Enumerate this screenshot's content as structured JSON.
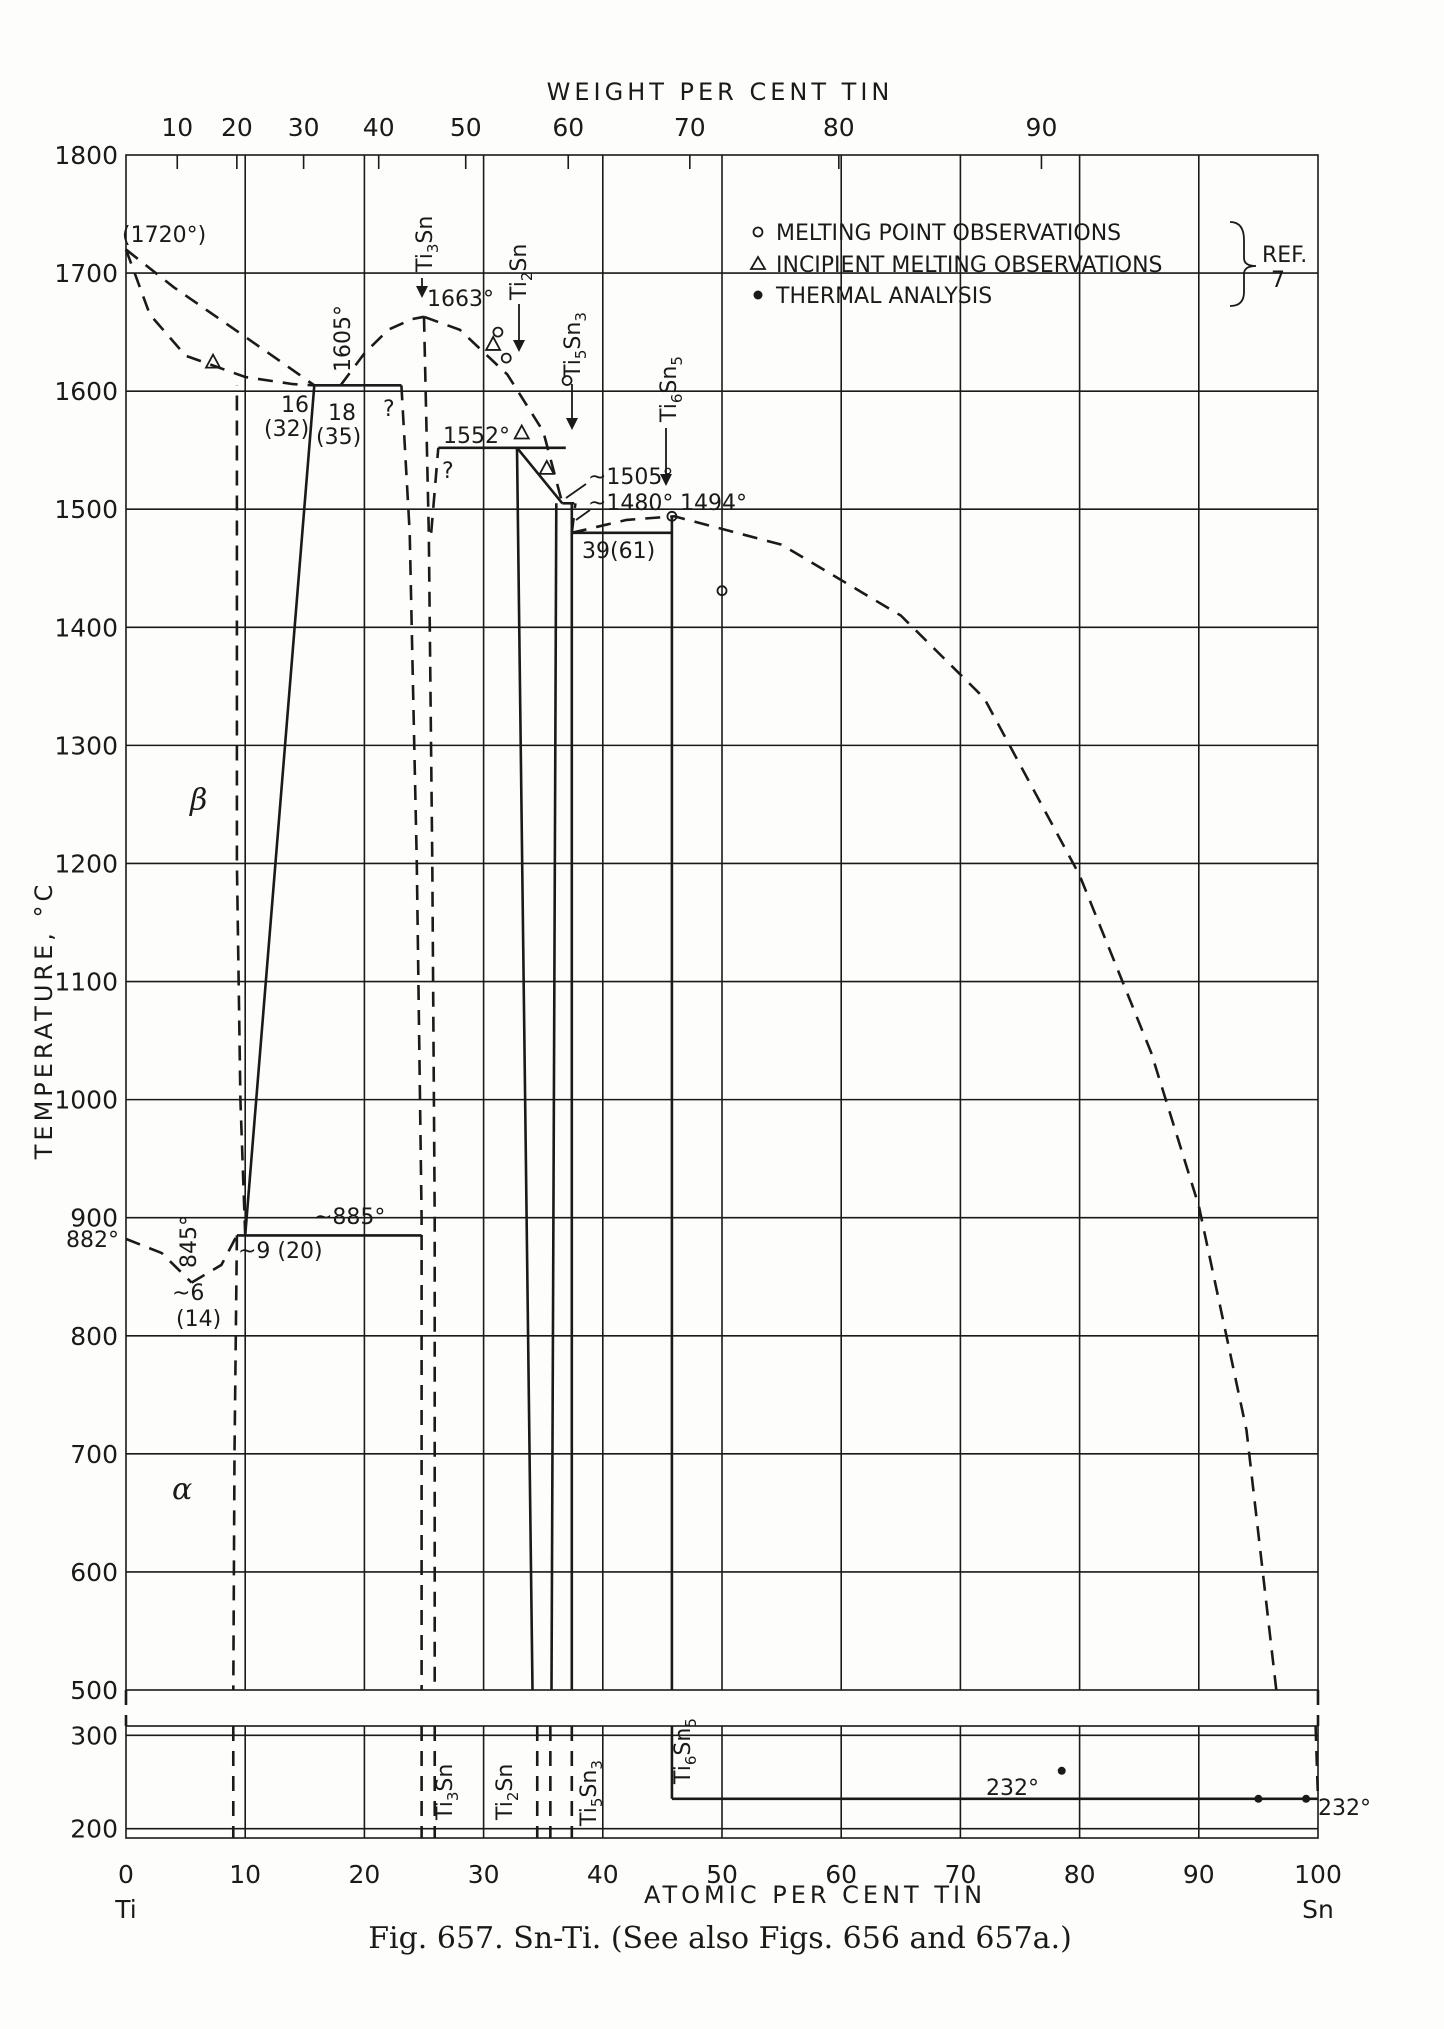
{
  "chart_data": {
    "type": "phase-diagram",
    "caption": "Fig. 657. Sn-Ti. (See also Figs. 656 and 657a.)",
    "top_axis_title": "WEIGHT PER CENT TIN",
    "top_ticks": [
      "10",
      "20",
      "30",
      "40",
      "50",
      "60",
      "70",
      "80",
      "90"
    ],
    "top_tick_atomic_positions": [
      4.3,
      9.3,
      14.9,
      21.2,
      28.5,
      37.1,
      47.3,
      59.8,
      76.8
    ],
    "x_label": "ATOMIC PER CENT TIN",
    "x_ticks": [
      "0",
      "10",
      "20",
      "30",
      "40",
      "50",
      "60",
      "70",
      "80",
      "90",
      "100"
    ],
    "x_end_labels": {
      "left": "Ti",
      "right": "Sn"
    },
    "xlim": [
      0,
      100
    ],
    "y_label": "TEMPERATURE, °C",
    "y_ticks_upper": [
      "1800",
      "1700",
      "1600",
      "1500",
      "1400",
      "1300",
      "1200",
      "1100",
      "1000",
      "900",
      "800",
      "700",
      "600",
      "500"
    ],
    "ylim_upper": [
      500,
      1800
    ],
    "y_ticks_lower": [
      "300",
      "200"
    ],
    "ylim_lower": [
      190,
      310
    ],
    "grid": true,
    "legend": {
      "placement": "top-right",
      "entries": [
        {
          "symbol": "open-circle",
          "label": "MELTING POINT OBSERVATIONS"
        },
        {
          "symbol": "triangle",
          "label": "INCIPIENT MELTING OBSERVATIONS"
        },
        {
          "symbol": "filled-circle",
          "label": "THERMAL ANALYSIS"
        }
      ],
      "ref_label": "REF.",
      "ref_number": "7"
    },
    "phase_labels": {
      "beta": "β",
      "alpha": "α"
    },
    "phases": [
      {
        "name": "Ti₃Sn",
        "main": "Ti",
        "sub1": "3",
        "mid": "Sn",
        "sub2": ""
      },
      {
        "name": "Ti₂Sn",
        "main": "Ti",
        "sub1": "2",
        "mid": "Sn",
        "sub2": ""
      },
      {
        "name": "Ti₅Sn₃",
        "main": "Ti",
        "sub1": "5",
        "mid": "Sn",
        "sub2": "3"
      },
      {
        "name": "Ti₆Sn₅",
        "main": "Ti",
        "sub1": "6",
        "mid": "Sn",
        "sub2": "5"
      }
    ],
    "annotations": [
      "(1720°)",
      "1605°",
      "16",
      "(32)",
      "18",
      "(35)",
      "?",
      "1663°",
      "1552°",
      "?",
      "~1505°",
      "~1480°",
      "1494°",
      "39(61)",
      "~885°",
      "845°",
      "882°",
      "~9 (20)",
      "~6",
      "(14)",
      "232°",
      "232°"
    ],
    "solid_lines": [
      {
        "name": "beta solvus left",
        "x": [
          15.8,
          10
        ],
        "y": [
          1605,
          885
        ]
      },
      {
        "name": "peritectic 1605",
        "x": [
          15.8,
          23.1
        ],
        "y": [
          1605,
          1605
        ]
      },
      {
        "name": "eutectoid 885",
        "x": [
          9.3,
          24.8
        ],
        "y": [
          885,
          885
        ]
      },
      {
        "name": "Ti2Sn peritectic 1552",
        "x": [
          26.2,
          36.9
        ],
        "y": [
          1552,
          1552
        ]
      },
      {
        "name": "Ti2Sn boundary",
        "x": [
          32.8,
          34.1
        ],
        "y": [
          1552,
          500
        ]
      },
      {
        "name": "Ti5Sn3 left",
        "x": [
          36.1,
          35.7
        ],
        "y": [
          1505,
          500
        ]
      },
      {
        "name": "Ti5Sn3 right",
        "x": [
          37.4,
          37.4
        ],
        "y": [
          1505,
          500
        ]
      },
      {
        "name": "Ti5Sn3 liquidus step",
        "x": [
          32.8,
          36.6
        ],
        "y": [
          1552,
          1505
        ]
      },
      {
        "name": "eutectic 1505",
        "x": [
          36.6,
          37.6
        ],
        "y": [
          1505,
          1505
        ]
      },
      {
        "name": "eutectic 1480",
        "x": [
          37.4,
          45.8
        ],
        "y": [
          1480,
          1480
        ]
      },
      {
        "name": "Ti6Sn5",
        "x": [
          45.8,
          45.8
        ],
        "y": [
          1494,
          500
        ]
      }
    ],
    "dashed_curves": [
      {
        "name": "liquidus Ti to peritectic",
        "x": [
          0,
          4,
          8,
          12,
          15.8
        ],
        "y": [
          1720,
          1688,
          1660,
          1632,
          1605
        ]
      },
      {
        "name": "solidus beta",
        "x": [
          0,
          2,
          5,
          10,
          14,
          15.8
        ],
        "y": [
          1720,
          1665,
          1630,
          1612,
          1606,
          1605
        ]
      },
      {
        "name": "liquidus peritectic to Ti3Sn",
        "x": [
          18,
          20,
          22,
          24,
          25
        ],
        "y": [
          1605,
          1632,
          1652,
          1661,
          1663
        ]
      },
      {
        "name": "liquidus Ti3Sn to 1505",
        "x": [
          25,
          28,
          32,
          35,
          36.6
        ],
        "y": [
          1663,
          1652,
          1614,
          1566,
          1505
        ]
      },
      {
        "name": "liquidus 1480 to Sn",
        "x": [
          37.4,
          42,
          46,
          55,
          65,
          72,
          80,
          86,
          90,
          94,
          96.5
        ],
        "y": [
          1480,
          1491,
          1494,
          1470,
          1410,
          1340,
          1190,
          1040,
          910,
          720,
          500
        ]
      },
      {
        "name": "Ti3Sn left",
        "x": [
          23.1,
          23.8,
          24.4,
          24.8,
          24.8
        ],
        "y": [
          1605,
          1480,
          1200,
          900,
          500
        ]
      },
      {
        "name": "Ti3Sn right",
        "x": [
          25,
          25.4,
          25.7,
          25.9,
          25.9
        ],
        "y": [
          1663,
          1480,
          1200,
          900,
          500
        ]
      },
      {
        "name": "beta solvus low",
        "x": [
          10,
          9.6,
          9.3,
          9.3
        ],
        "y": [
          885,
          1000,
          1200,
          1605
        ]
      },
      {
        "name": "alpha/beta transus left",
        "x": [
          0,
          3,
          5.5
        ],
        "y": [
          882,
          870,
          845
        ]
      },
      {
        "name": "alpha/beta transus right",
        "x": [
          5.5,
          8,
          9.3
        ],
        "y": [
          845,
          860,
          885
        ]
      },
      {
        "name": "alpha solvus",
        "x": [
          9.3,
          9.1,
          9.0
        ],
        "y": [
          885,
          700,
          500
        ]
      },
      {
        "name": "Ti3Sn region upper",
        "x": [
          25.6,
          26.2
        ],
        "y": [
          1480,
          1552
        ]
      },
      {
        "name": "Ti5Sn3 right liquidus",
        "x": [
          37.4,
          37.7
        ],
        "y": [
          1480,
          1505
        ]
      }
    ],
    "melting_points": [
      {
        "x": 31.2,
        "y": 1650
      },
      {
        "x": 31.9,
        "y": 1628
      },
      {
        "x": 37.0,
        "y": 1609
      },
      {
        "x": 45.8,
        "y": 1494
      },
      {
        "x": 50.0,
        "y": 1431
      }
    ],
    "incipient_melting_points": [
      {
        "x": 7.3,
        "y": 1625
      },
      {
        "x": 30.8,
        "y": 1640
      },
      {
        "x": 33.2,
        "y": 1565
      },
      {
        "x": 35.3,
        "y": 1535
      }
    ],
    "thermal_analysis_points": [
      {
        "x": 95.0,
        "y": 232
      },
      {
        "x": 99.0,
        "y": 232
      },
      {
        "x": 78.5,
        "y": 262
      }
    ],
    "lower_panel": {
      "tin_line": {
        "x": [
          45.8,
          100
        ],
        "y": [
          232,
          232
        ]
      },
      "phase_boundaries_dashed": [
        9.0,
        24.8,
        25.9,
        34.5,
        35.6,
        37.4
      ],
      "ti6sn5_solid": 45.8,
      "tin_liquidus_dashed": {
        "x": [
          99.8,
          100
        ],
        "y": [
          310,
          232
        ]
      }
    }
  }
}
